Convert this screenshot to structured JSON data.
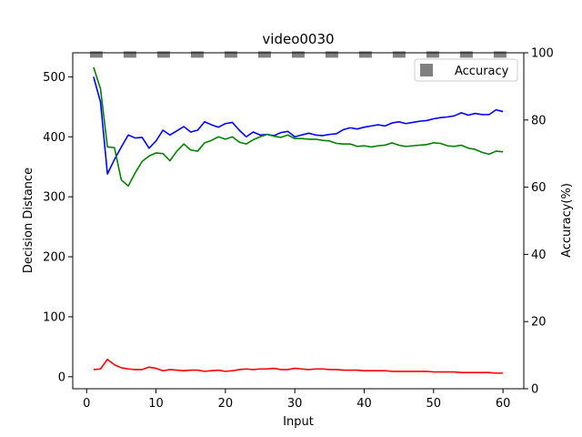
{
  "chart_data": {
    "type": "line",
    "title": "video0030",
    "xlabel": "Input",
    "ylabel": "Decision Distance",
    "y2label": "Accuracy(%)",
    "xlim": [
      -2,
      63
    ],
    "ylim": [
      -20,
      540
    ],
    "y2lim": [
      0,
      100
    ],
    "xticks": [
      0,
      10,
      20,
      30,
      40,
      50,
      60
    ],
    "yticks": [
      0,
      100,
      200,
      300,
      400,
      500
    ],
    "y2ticks": [
      0,
      20,
      40,
      60,
      80,
      100
    ],
    "grid": false,
    "legend": {
      "placement": "top-right",
      "entries": [
        "Accuracy"
      ]
    },
    "accuracy": {
      "name": "Accuracy",
      "color": "#808080",
      "style": "dashed",
      "value": 99.5,
      "x_range": [
        1,
        60
      ]
    },
    "series": [
      {
        "color": "#0000ff",
        "x": [
          1,
          2,
          3,
          4,
          5,
          6,
          7,
          8,
          9,
          10,
          11,
          12,
          13,
          14,
          15,
          16,
          17,
          18,
          19,
          20,
          21,
          22,
          23,
          24,
          25,
          26,
          27,
          28,
          29,
          30,
          31,
          32,
          33,
          34,
          35,
          36,
          37,
          38,
          39,
          40,
          41,
          42,
          43,
          44,
          45,
          46,
          47,
          48,
          49,
          50,
          51,
          52,
          53,
          54,
          55,
          56,
          57,
          58,
          59,
          60
        ],
        "values": [
          500,
          458,
          338,
          362,
          383,
          403,
          398,
          399,
          381,
          393,
          411,
          403,
          410,
          417,
          408,
          411,
          425,
          420,
          416,
          422,
          424,
          411,
          400,
          408,
          403,
          404,
          402,
          407,
          409,
          400,
          403,
          406,
          403,
          402,
          404,
          405,
          412,
          415,
          413,
          416,
          418,
          420,
          418,
          423,
          425,
          422,
          424,
          426,
          427,
          430,
          432,
          433,
          435,
          440,
          436,
          439,
          437,
          437,
          445,
          442
        ]
      },
      {
        "color": "#008000",
        "x": [
          1,
          2,
          3,
          4,
          5,
          6,
          7,
          8,
          9,
          10,
          11,
          12,
          13,
          14,
          15,
          16,
          17,
          18,
          19,
          20,
          21,
          22,
          23,
          24,
          25,
          26,
          27,
          28,
          29,
          30,
          31,
          32,
          33,
          34,
          35,
          36,
          37,
          38,
          39,
          40,
          41,
          42,
          43,
          44,
          45,
          46,
          47,
          48,
          49,
          50,
          51,
          52,
          53,
          54,
          55,
          56,
          57,
          58,
          59,
          60
        ],
        "values": [
          516,
          480,
          383,
          382,
          328,
          318,
          340,
          359,
          368,
          373,
          372,
          360,
          376,
          388,
          378,
          376,
          390,
          394,
          400,
          396,
          400,
          391,
          388,
          395,
          400,
          404,
          401,
          399,
          403,
          397,
          397,
          396,
          396,
          394,
          393,
          389,
          388,
          388,
          384,
          385,
          383,
          385,
          386,
          390,
          386,
          384,
          385,
          386,
          387,
          390,
          389,
          385,
          384,
          386,
          381,
          379,
          374,
          371,
          376,
          375
        ]
      },
      {
        "color": "#ff0000",
        "x": [
          1,
          2,
          3,
          4,
          5,
          6,
          7,
          8,
          9,
          10,
          11,
          12,
          13,
          14,
          15,
          16,
          17,
          18,
          19,
          20,
          21,
          22,
          23,
          24,
          25,
          26,
          27,
          28,
          29,
          30,
          31,
          32,
          33,
          34,
          35,
          36,
          37,
          38,
          39,
          40,
          41,
          42,
          43,
          44,
          45,
          46,
          47,
          48,
          49,
          50,
          51,
          52,
          53,
          54,
          55,
          56,
          57,
          58,
          59,
          60
        ],
        "values": [
          12,
          13,
          29,
          20,
          15,
          13,
          12,
          12,
          16,
          14,
          10,
          12,
          11,
          10,
          11,
          11,
          9,
          10,
          11,
          9,
          10,
          12,
          13,
          12,
          13,
          13,
          14,
          12,
          12,
          14,
          13,
          12,
          13,
          13,
          12,
          12,
          11,
          11,
          11,
          10,
          10,
          10,
          10,
          9,
          9,
          9,
          9,
          9,
          9,
          8,
          8,
          8,
          8,
          7,
          7,
          7,
          7,
          7,
          6,
          6
        ]
      }
    ]
  }
}
